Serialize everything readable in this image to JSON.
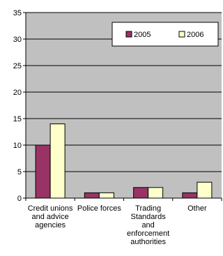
{
  "chart_data": {
    "type": "bar",
    "categories": [
      [
        "Credit unions",
        "and advice",
        "agencies"
      ],
      [
        "Police forces"
      ],
      [
        "Trading",
        "Standards",
        "and",
        "enforcement",
        "authorities"
      ],
      [
        "Other"
      ]
    ],
    "series": [
      {
        "name": "2005",
        "values": [
          10,
          1,
          2,
          1
        ]
      },
      {
        "name": "2006",
        "values": [
          14,
          1,
          2,
          3
        ]
      }
    ],
    "ylim": [
      0,
      35
    ],
    "yticks": [
      "0",
      "5",
      "10",
      "15",
      "20",
      "25",
      "30",
      "35"
    ],
    "grid": true,
    "legend": "top-right"
  },
  "colors": {
    "plot_background": "#c0c0c0",
    "series": [
      "#993366",
      "#ffffcc"
    ],
    "gridline": "#000000",
    "bar_outline": "#000000"
  }
}
